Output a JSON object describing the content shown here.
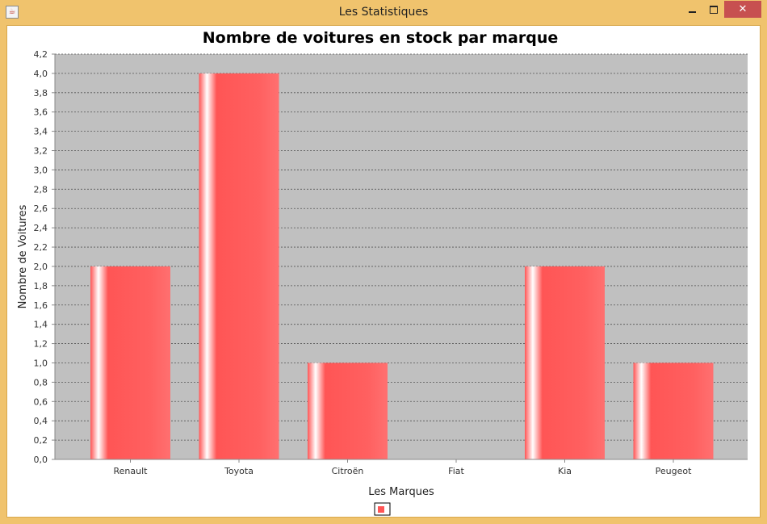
{
  "window": {
    "title": "Les Statistiques",
    "close_glyph": "✕"
  },
  "chart_data": {
    "type": "bar",
    "title": "Nombre de voitures en stock par marque",
    "xlabel": "Les Marques",
    "ylabel": "Nombre de Voitures",
    "categories": [
      "Renault",
      "Toyota",
      "Citroën",
      "Fiat",
      "Kia",
      "Peugeot"
    ],
    "series": [
      {
        "values": [
          2,
          4,
          1,
          0,
          2,
          1
        ]
      }
    ],
    "ylim": [
      0,
      4.2
    ],
    "yticks": [
      "0,0",
      "0,2",
      "0,4",
      "0,6",
      "0,8",
      "1,0",
      "1,2",
      "1,4",
      "1,6",
      "1,8",
      "2,0",
      "2,2",
      "2,4",
      "2,6",
      "2,8",
      "3,0",
      "3,2",
      "3,4",
      "3,6",
      "3,8",
      "4,0",
      "4,2"
    ],
    "grid": true,
    "legend_position": "bottom",
    "colors": {
      "bar": "#ff5555",
      "plot_background": "#c0c0c0"
    }
  }
}
